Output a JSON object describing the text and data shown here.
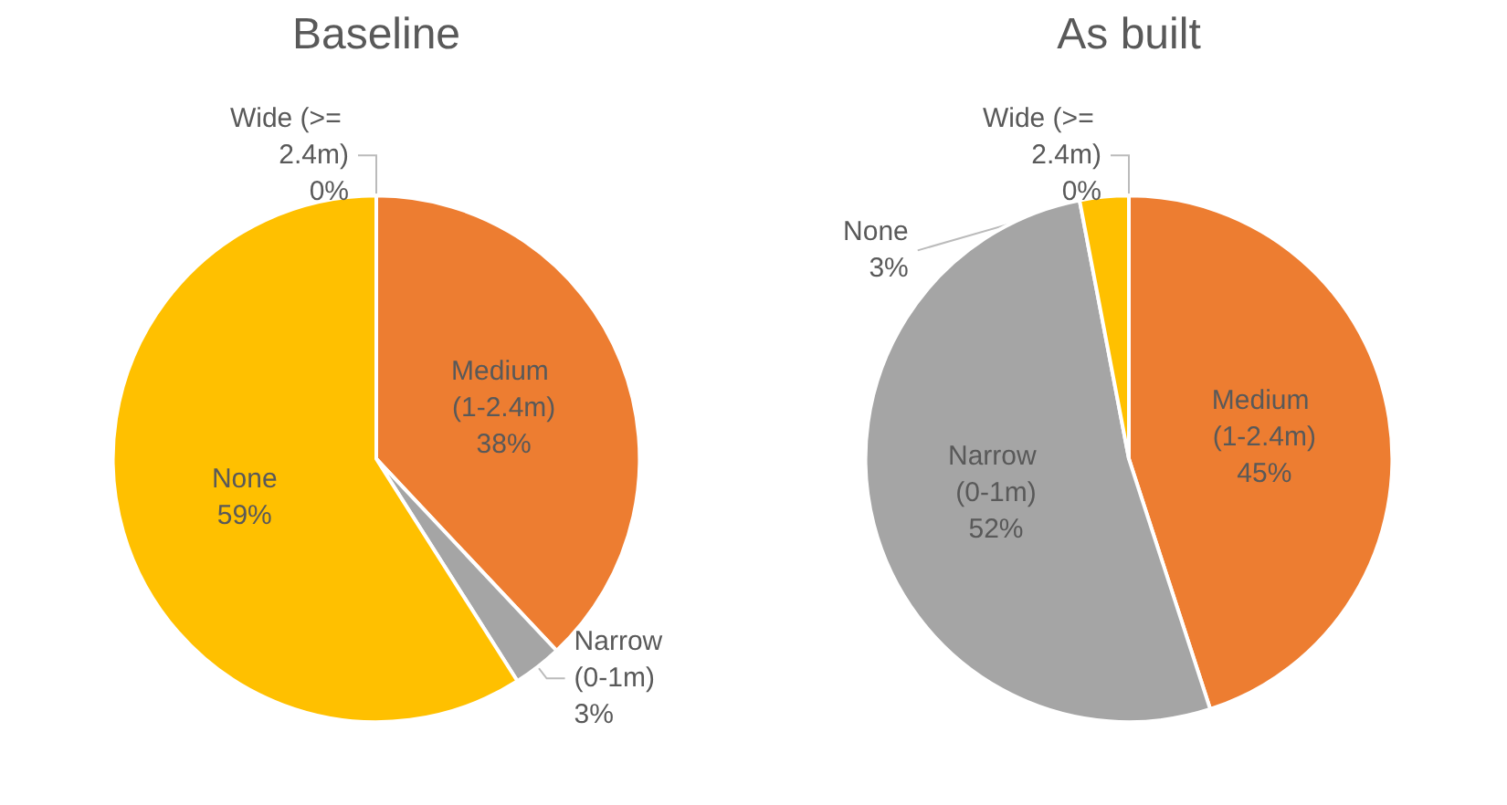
{
  "chart_data": [
    {
      "type": "pie",
      "title": "Baseline",
      "categories": [
        "Wide (>= 2.4m)",
        "Medium (1-2.4m)",
        "Narrow (0-1m)",
        "None"
      ],
      "values": [
        0,
        38,
        3,
        59
      ],
      "value_labels": [
        "0%",
        "38%",
        "3%",
        "59%"
      ],
      "colors": [
        "#5b9bd5",
        "#ed7d31",
        "#a5a5a5",
        "#ffc000"
      ],
      "legend": false
    },
    {
      "type": "pie",
      "title": "As built",
      "categories": [
        "Wide (>= 2.4m)",
        "Medium (1-2.4m)",
        "Narrow (0-1m)",
        "None"
      ],
      "values": [
        0,
        45,
        52,
        3
      ],
      "value_labels": [
        "0%",
        "45%",
        "52%",
        "3%"
      ],
      "colors": [
        "#5b9bd5",
        "#ed7d31",
        "#a5a5a5",
        "#ffc000"
      ],
      "legend": false
    }
  ]
}
